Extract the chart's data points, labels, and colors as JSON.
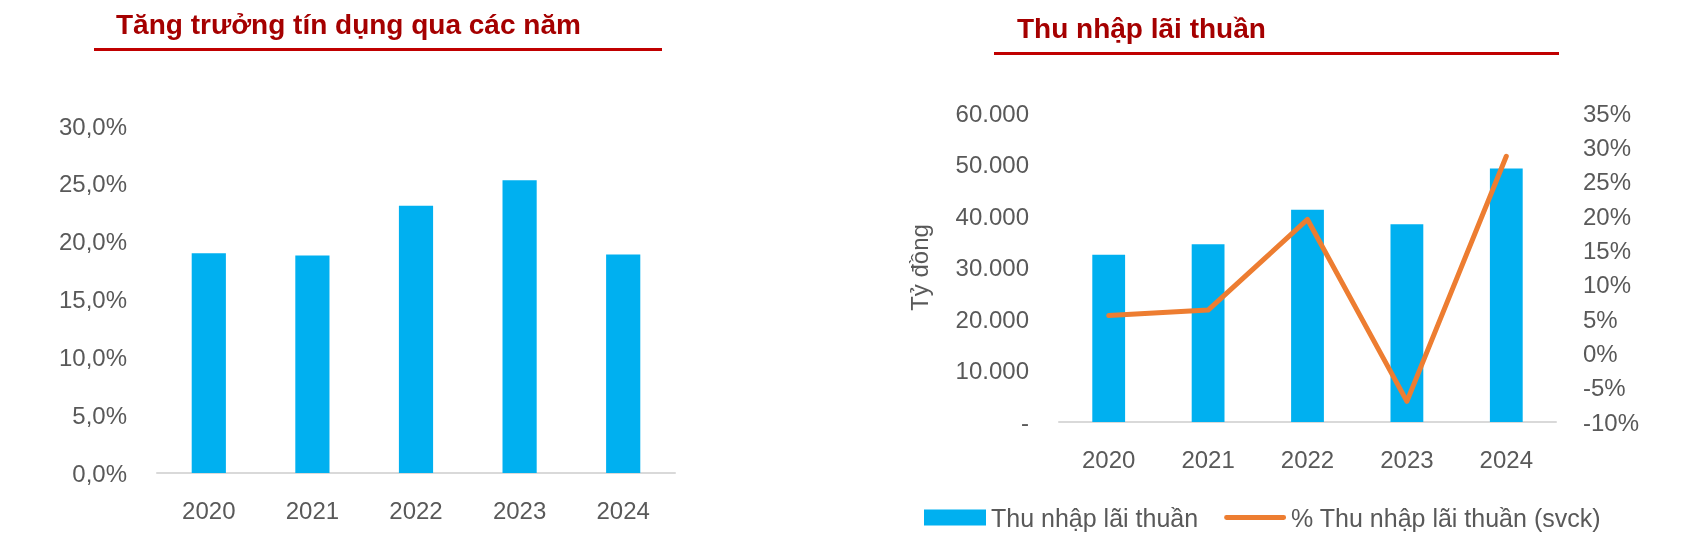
{
  "chart_data": [
    {
      "type": "bar",
      "title": "Tăng trưởng tín dụng qua các năm",
      "categories": [
        "2020",
        "2021",
        "2022",
        "2023",
        "2024"
      ],
      "values": [
        19.0,
        18.8,
        23.1,
        25.3,
        18.9
      ],
      "color": "#00b0f0",
      "ylim": [
        0,
        30
      ],
      "yticks": [
        {
          "value": 0,
          "label": "0,0%"
        },
        {
          "value": 5,
          "label": "5,0%"
        },
        {
          "value": 10,
          "label": "10,0%"
        },
        {
          "value": 15,
          "label": "15,0%"
        },
        {
          "value": 20,
          "label": "20,0%"
        },
        {
          "value": 25,
          "label": "25,0%"
        },
        {
          "value": 30,
          "label": "30,0%"
        }
      ],
      "grid": false
    },
    {
      "type": "bar",
      "title": "Thu nhập lãi thuần",
      "ylabel": "Tỷ đồng",
      "categories": [
        "2020",
        "2021",
        "2022",
        "2023",
        "2024"
      ],
      "series": [
        {
          "name": "Thu nhập lãi thuần",
          "color": "#00b0f0",
          "values": [
            32500,
            34500,
            41200,
            38400,
            49200
          ]
        },
        {
          "name": "% Thu nhập lãi thuần (svck)",
          "type": "line",
          "axis": "y2",
          "color": "#ed7d31",
          "values": [
            5.5,
            6.3,
            19.5,
            -7.0,
            28.7
          ]
        }
      ],
      "ylim": [
        0,
        60000
      ],
      "yticks": [
        {
          "value": 0,
          "label": "-"
        },
        {
          "value": 10000,
          "label": "10.000"
        },
        {
          "value": 20000,
          "label": "20.000"
        },
        {
          "value": 30000,
          "label": "30.000"
        },
        {
          "value": 40000,
          "label": "40.000"
        },
        {
          "value": 50000,
          "label": "50.000"
        },
        {
          "value": 60000,
          "label": "60.000"
        }
      ],
      "y2lim": [
        -10,
        35
      ],
      "y2ticks": [
        {
          "value": -10,
          "label": "-10%"
        },
        {
          "value": -5,
          "label": "-5%"
        },
        {
          "value": 0,
          "label": "0%"
        },
        {
          "value": 5,
          "label": "5%"
        },
        {
          "value": 10,
          "label": "10%"
        },
        {
          "value": 15,
          "label": "15%"
        },
        {
          "value": 20,
          "label": "20%"
        },
        {
          "value": 25,
          "label": "25%"
        },
        {
          "value": 30,
          "label": "30%"
        },
        {
          "value": 35,
          "label": "35%"
        }
      ],
      "legend": "bottom",
      "marker": "none",
      "line_style": "solid",
      "grid": false
    }
  ]
}
